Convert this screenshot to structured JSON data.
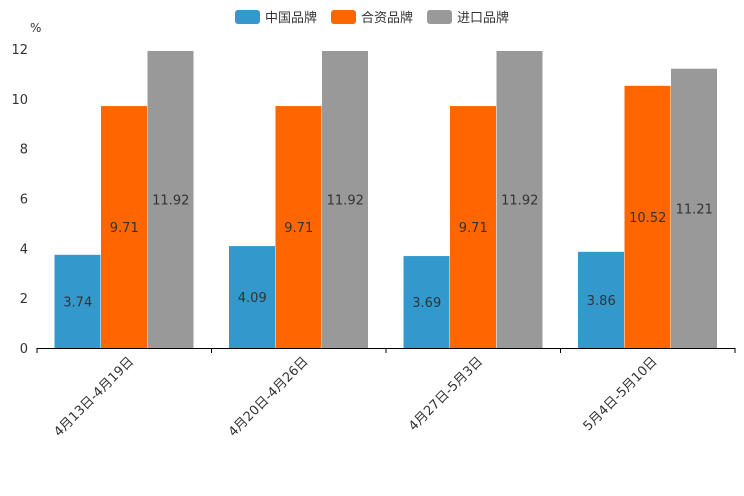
{
  "chart_data": {
    "type": "bar",
    "unit": "%",
    "categories": [
      "4月13日-4月19日",
      "4月20日-4月26日",
      "4月27日-5月3日",
      "5月4日-5月10日"
    ],
    "series": [
      {
        "name": "中国品牌",
        "color": "#3399cc",
        "values": [
          3.74,
          4.09,
          3.69,
          3.86
        ]
      },
      {
        "name": "合资品牌",
        "color": "#ff6600",
        "values": [
          9.71,
          9.71,
          9.71,
          10.52
        ]
      },
      {
        "name": "进口品牌",
        "color": "#999999",
        "values": [
          11.92,
          11.92,
          11.92,
          11.21
        ]
      }
    ],
    "yticks": [
      "0",
      "2",
      "4",
      "6",
      "8",
      "10",
      "12"
    ],
    "ylim": [
      0,
      12
    ],
    "legend_position": "top-center",
    "data_labels": true
  }
}
